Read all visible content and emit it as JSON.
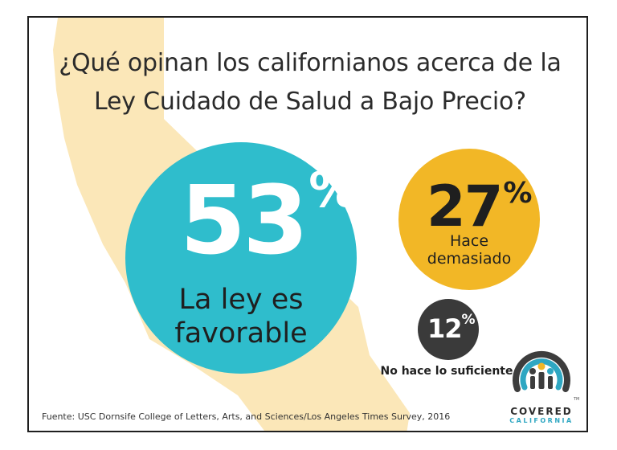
{
  "title": {
    "line1": "¿Qué opinan los californianos acerca de la",
    "line2": "Ley Cuidado de Salud a Bajo Precio?"
  },
  "chart_data": {
    "type": "bubble",
    "title": "¿Qué opinan los californianos acerca de la Ley Cuidado de Salud a Bajo Precio?",
    "categories": [
      "La ley es favorable",
      "Hace demasiado",
      "No hace lo suficiente"
    ],
    "values": [
      53,
      27,
      12
    ],
    "unit": "%"
  },
  "bubbles": [
    {
      "value": "53",
      "symbol": "%",
      "label_line1": "La ley es",
      "label_line2": "favorable",
      "color": "#2fbdcc"
    },
    {
      "value": "27",
      "symbol": "%",
      "label_line1": "Hace",
      "label_line2": "demasiado",
      "color": "#f2b726"
    },
    {
      "value": "12",
      "symbol": "%",
      "label": "No hace lo suficiente",
      "color": "#3a3a3a"
    }
  ],
  "source": "Fuente: USC Dornsife College of Letters, Arts, and Sciences/Los Angeles Times Survey, 2016",
  "logo": {
    "line1": "COVERED",
    "line2": "CALIFORNIA",
    "tm": "TM"
  },
  "colors": {
    "map": "#fbe7b8",
    "ring_dark": "#3d3d3d",
    "ring_blue": "#2fa7c2"
  }
}
